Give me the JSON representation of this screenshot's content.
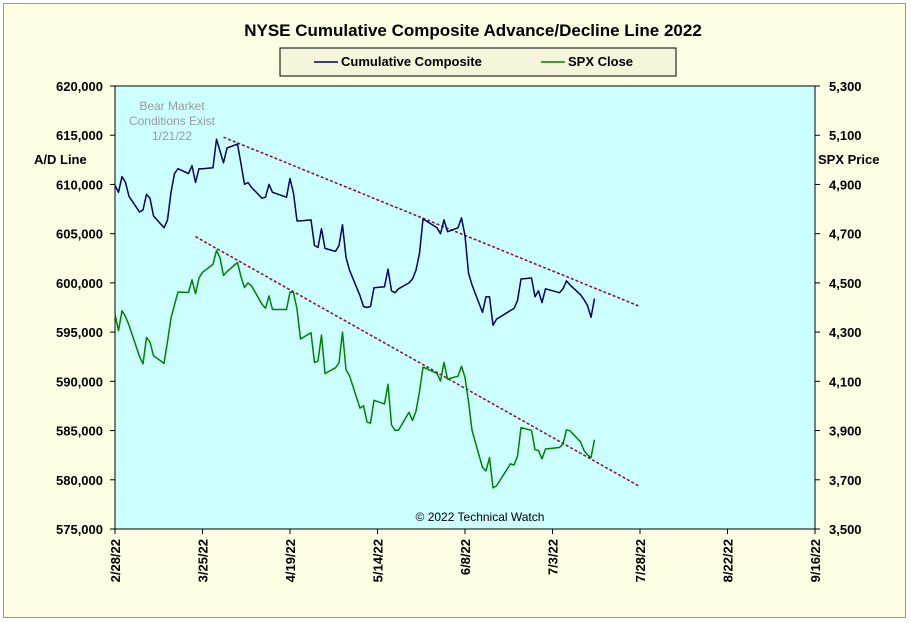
{
  "chart_data": {
    "type": "line",
    "title": "NYSE Cumulative  Composite Advance/Decline  Line 2022",
    "ylabel_left": "A/D Line",
    "ylabel_right": "SPX Price",
    "y_left_range": [
      575000,
      620000
    ],
    "y_right_range": [
      3500,
      5300
    ],
    "y_left_ticks": [
      "575,000",
      "580,000",
      "585,000",
      "590,000",
      "595,000",
      "600,000",
      "605,000",
      "610,000",
      "615,000",
      "620,000"
    ],
    "y_right_ticks": [
      "3,500",
      "3,700",
      "3,900",
      "4,100",
      "4,300",
      "4,500",
      "4,700",
      "4,900",
      "5,100",
      "5,300"
    ],
    "x_ticks": [
      "2/28/22",
      "3/25/22",
      "4/19/22",
      "5/14/22",
      "6/8/22",
      "7/3/22",
      "7/28/22",
      "8/22/22",
      "9/16/22"
    ],
    "x_tick_dates": [
      "2022-02-28",
      "2022-03-25",
      "2022-04-19",
      "2022-05-14",
      "2022-06-08",
      "2022-07-03",
      "2022-07-28",
      "2022-08-22",
      "2022-09-16"
    ],
    "grid": false,
    "legend_position": "top-center",
    "series": [
      {
        "name": "Cumulative Composite",
        "axis": "left",
        "color": "#000066",
        "points": [
          [
            "2022-02-28",
            609.9
          ],
          [
            "2022-03-01",
            609.2
          ],
          [
            "2022-03-02",
            610.8
          ],
          [
            "2022-03-03",
            610.2
          ],
          [
            "2022-03-04",
            608.8
          ],
          [
            "2022-03-07",
            607.2
          ],
          [
            "2022-03-08",
            607.4
          ],
          [
            "2022-03-09",
            609.0
          ],
          [
            "2022-03-10",
            608.6
          ],
          [
            "2022-03-11",
            606.8
          ],
          [
            "2022-03-14",
            605.6
          ],
          [
            "2022-03-15",
            606.4
          ],
          [
            "2022-03-16",
            609.2
          ],
          [
            "2022-03-17",
            611.1
          ],
          [
            "2022-03-18",
            611.6
          ],
          [
            "2022-03-21",
            611.1
          ],
          [
            "2022-03-22",
            611.9
          ],
          [
            "2022-03-23",
            610.2
          ],
          [
            "2022-03-24",
            611.6
          ],
          [
            "2022-03-25",
            611.6
          ],
          [
            "2022-03-28",
            611.7
          ],
          [
            "2022-03-29",
            614.6
          ],
          [
            "2022-03-30",
            613.4
          ],
          [
            "2022-03-31",
            612.2
          ],
          [
            "2022-04-01",
            613.7
          ],
          [
            "2022-04-04",
            614.1
          ],
          [
            "2022-04-05",
            612.1
          ],
          [
            "2022-04-06",
            610.0
          ],
          [
            "2022-04-07",
            610.2
          ],
          [
            "2022-04-08",
            609.7
          ],
          [
            "2022-04-11",
            608.6
          ],
          [
            "2022-04-12",
            608.7
          ],
          [
            "2022-04-13",
            610.0
          ],
          [
            "2022-04-14",
            609.2
          ],
          [
            "2022-04-18",
            608.7
          ],
          [
            "2022-04-19",
            610.6
          ],
          [
            "2022-04-20",
            609.1
          ],
          [
            "2022-04-21",
            606.3
          ],
          [
            "2022-04-22",
            606.3
          ],
          [
            "2022-04-25",
            606.4
          ],
          [
            "2022-04-26",
            603.8
          ],
          [
            "2022-04-27",
            603.6
          ],
          [
            "2022-04-28",
            605.5
          ],
          [
            "2022-04-29",
            603.5
          ],
          [
            "2022-05-02",
            603.2
          ],
          [
            "2022-05-03",
            603.8
          ],
          [
            "2022-05-04",
            605.9
          ],
          [
            "2022-05-05",
            602.6
          ],
          [
            "2022-05-06",
            601.3
          ],
          [
            "2022-05-09",
            598.7
          ],
          [
            "2022-05-10",
            597.6
          ],
          [
            "2022-05-11",
            597.5
          ],
          [
            "2022-05-12",
            597.6
          ],
          [
            "2022-05-13",
            599.5
          ],
          [
            "2022-05-16",
            599.6
          ],
          [
            "2022-05-17",
            601.4
          ],
          [
            "2022-05-18",
            599.2
          ],
          [
            "2022-05-19",
            599.0
          ],
          [
            "2022-05-20",
            599.4
          ],
          [
            "2022-05-23",
            600.0
          ],
          [
            "2022-05-24",
            600.4
          ],
          [
            "2022-05-25",
            601.3
          ],
          [
            "2022-05-26",
            603.0
          ],
          [
            "2022-05-27",
            606.5
          ],
          [
            "2022-05-31",
            605.6
          ],
          [
            "2022-06-01",
            605.0
          ],
          [
            "2022-06-02",
            606.4
          ],
          [
            "2022-06-03",
            605.2
          ],
          [
            "2022-06-06",
            605.6
          ],
          [
            "2022-06-07",
            606.6
          ],
          [
            "2022-06-08",
            604.8
          ],
          [
            "2022-06-09",
            601.0
          ],
          [
            "2022-06-10",
            599.8
          ],
          [
            "2022-06-13",
            597.0
          ],
          [
            "2022-06-14",
            598.6
          ],
          [
            "2022-06-15",
            598.6
          ],
          [
            "2022-06-16",
            595.7
          ],
          [
            "2022-06-17",
            596.3
          ],
          [
            "2022-06-21",
            597.2
          ],
          [
            "2022-06-22",
            597.4
          ],
          [
            "2022-06-23",
            598.2
          ],
          [
            "2022-06-24",
            600.4
          ],
          [
            "2022-06-27",
            600.5
          ],
          [
            "2022-06-28",
            598.6
          ],
          [
            "2022-06-29",
            599.2
          ],
          [
            "2022-06-30",
            598.0
          ],
          [
            "2022-07-01",
            599.4
          ],
          [
            "2022-07-05",
            599.0
          ],
          [
            "2022-07-06",
            599.4
          ],
          [
            "2022-07-07",
            600.2
          ],
          [
            "2022-07-08",
            599.8
          ],
          [
            "2022-07-11",
            598.8
          ],
          [
            "2022-07-12",
            598.3
          ],
          [
            "2022-07-13",
            597.7
          ],
          [
            "2022-07-14",
            596.5
          ],
          [
            "2022-07-15",
            598.4
          ]
        ]
      },
      {
        "name": "SPX Close",
        "axis": "right",
        "color": "#008000",
        "points": [
          [
            "2022-02-28",
            4373
          ],
          [
            "2022-03-01",
            4306
          ],
          [
            "2022-03-02",
            4387
          ],
          [
            "2022-03-03",
            4363
          ],
          [
            "2022-03-04",
            4328
          ],
          [
            "2022-03-07",
            4201
          ],
          [
            "2022-03-08",
            4171
          ],
          [
            "2022-03-09",
            4278
          ],
          [
            "2022-03-10",
            4259
          ],
          [
            "2022-03-11",
            4204
          ],
          [
            "2022-03-14",
            4173
          ],
          [
            "2022-03-15",
            4262
          ],
          [
            "2022-03-16",
            4357
          ],
          [
            "2022-03-17",
            4411
          ],
          [
            "2022-03-18",
            4463
          ],
          [
            "2022-03-21",
            4461
          ],
          [
            "2022-03-22",
            4512
          ],
          [
            "2022-03-23",
            4456
          ],
          [
            "2022-03-24",
            4520
          ],
          [
            "2022-03-25",
            4543
          ],
          [
            "2022-03-28",
            4575
          ],
          [
            "2022-03-29",
            4632
          ],
          [
            "2022-03-30",
            4602
          ],
          [
            "2022-03-31",
            4530
          ],
          [
            "2022-04-01",
            4546
          ],
          [
            "2022-04-04",
            4583
          ],
          [
            "2022-04-05",
            4525
          ],
          [
            "2022-04-06",
            4481
          ],
          [
            "2022-04-07",
            4500
          ],
          [
            "2022-04-08",
            4488
          ],
          [
            "2022-04-11",
            4413
          ],
          [
            "2022-04-12",
            4397
          ],
          [
            "2022-04-13",
            4447
          ],
          [
            "2022-04-14",
            4392
          ],
          [
            "2022-04-18",
            4392
          ],
          [
            "2022-04-19",
            4463
          ],
          [
            "2022-04-20",
            4460
          ],
          [
            "2022-04-21",
            4394
          ],
          [
            "2022-04-22",
            4272
          ],
          [
            "2022-04-25",
            4297
          ],
          [
            "2022-04-26",
            4176
          ],
          [
            "2022-04-27",
            4183
          ],
          [
            "2022-04-28",
            4288
          ],
          [
            "2022-04-29",
            4132
          ],
          [
            "2022-05-02",
            4155
          ],
          [
            "2022-05-03",
            4175
          ],
          [
            "2022-05-04",
            4300
          ],
          [
            "2022-05-05",
            4147
          ],
          [
            "2022-05-06",
            4123
          ],
          [
            "2022-05-09",
            3991
          ],
          [
            "2022-05-10",
            4001
          ],
          [
            "2022-05-11",
            3935
          ],
          [
            "2022-05-12",
            3930
          ],
          [
            "2022-05-13",
            4023
          ],
          [
            "2022-05-16",
            4008
          ],
          [
            "2022-05-17",
            4088
          ],
          [
            "2022-05-18",
            3923
          ],
          [
            "2022-05-19",
            3901
          ],
          [
            "2022-05-20",
            3901
          ],
          [
            "2022-05-23",
            3974
          ],
          [
            "2022-05-24",
            3941
          ],
          [
            "2022-05-25",
            3979
          ],
          [
            "2022-05-26",
            4058
          ],
          [
            "2022-05-27",
            4158
          ],
          [
            "2022-05-31",
            4132
          ],
          [
            "2022-06-01",
            4101
          ],
          [
            "2022-06-02",
            4177
          ],
          [
            "2022-06-03",
            4109
          ],
          [
            "2022-06-06",
            4121
          ],
          [
            "2022-06-07",
            4161
          ],
          [
            "2022-06-08",
            4116
          ],
          [
            "2022-06-09",
            4018
          ],
          [
            "2022-06-10",
            3901
          ],
          [
            "2022-06-13",
            3750
          ],
          [
            "2022-06-14",
            3736
          ],
          [
            "2022-06-15",
            3790
          ],
          [
            "2022-06-16",
            3667
          ],
          [
            "2022-06-17",
            3675
          ],
          [
            "2022-06-21",
            3765
          ],
          [
            "2022-06-22",
            3760
          ],
          [
            "2022-06-23",
            3796
          ],
          [
            "2022-06-24",
            3912
          ],
          [
            "2022-06-27",
            3901
          ],
          [
            "2022-06-28",
            3822
          ],
          [
            "2022-06-29",
            3819
          ],
          [
            "2022-06-30",
            3785
          ],
          [
            "2022-07-01",
            3825
          ],
          [
            "2022-07-05",
            3831
          ],
          [
            "2022-07-06",
            3845
          ],
          [
            "2022-07-07",
            3903
          ],
          [
            "2022-07-08",
            3899
          ],
          [
            "2022-07-11",
            3854
          ],
          [
            "2022-07-12",
            3819
          ],
          [
            "2022-07-13",
            3801
          ],
          [
            "2022-07-14",
            3790
          ],
          [
            "2022-07-15",
            3863
          ]
        ]
      }
    ],
    "trendlines": [
      {
        "axis": "left",
        "color": "#8b1a3a",
        "from": [
          "2022-03-31",
          614.8
        ],
        "to": [
          "2022-07-28",
          597.6
        ]
      },
      {
        "axis": "left",
        "color": "#8b1a3a",
        "from": [
          "2022-03-23",
          604.7
        ],
        "to": [
          "2022-07-28",
          579.3
        ]
      }
    ],
    "annotations": [
      {
        "text": [
          "Bear Market",
          "Conditions  Exist",
          "1/21/22"
        ]
      },
      {
        "text": [
          "© 2022 Technical  Watch"
        ]
      }
    ]
  },
  "colors": {
    "plot_background": "#ccffff",
    "frame_background": "#fdfde4",
    "legend_background": "#f5f5dc"
  }
}
